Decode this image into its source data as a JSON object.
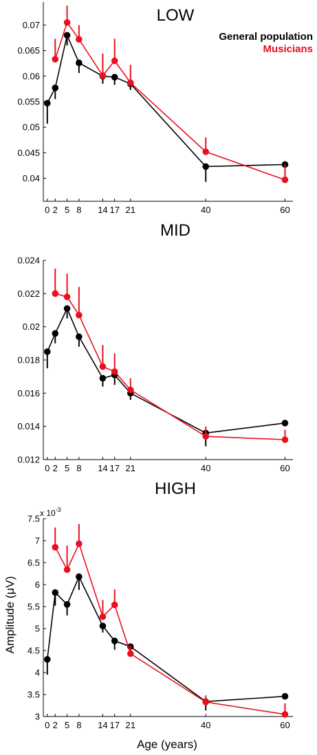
{
  "legend": {
    "general_label": "General population",
    "musicians_label": "Musicians",
    "general_color": "#000000",
    "musicians_color": "#e8101e"
  },
  "ylabel": "Amplitude (μV)",
  "xlabel": "Age (years)",
  "x_tick_labels": [
    "0",
    "2",
    "5",
    "8",
    "14",
    "17",
    "21",
    "40",
    "60"
  ],
  "chart_data": [
    {
      "type": "line",
      "title": "LOW",
      "x": [
        0,
        2,
        5,
        8,
        14,
        17,
        21,
        40,
        60
      ],
      "xlim": [
        -1,
        62
      ],
      "ylim": [
        0.0355,
        0.0745
      ],
      "yticks": [
        0.04,
        0.045,
        0.05,
        0.055,
        0.06,
        0.065,
        0.07
      ],
      "ytick_labels": [
        "0.04",
        "0.045",
        "0.05",
        "0.055",
        "0.06",
        "0.065",
        "0.07"
      ],
      "series": [
        {
          "name": "General population",
          "color": "#000000",
          "values": [
            0.0547,
            0.0577,
            0.068,
            0.0626,
            0.06,
            0.0598,
            0.0585,
            0.0423,
            0.0427
          ],
          "err_lower": [
            0.004,
            0.0022,
            0.002,
            0.002,
            0.0015,
            0.0015,
            0.0012,
            0.003,
            0.0
          ],
          "err_upper": [
            0.0,
            0.0,
            0.0,
            0.0,
            0.0,
            0.0,
            0.0,
            0.0,
            0.0
          ]
        },
        {
          "name": "Musicians",
          "color": "#e8101e",
          "values": [
            null,
            0.0633,
            0.0705,
            0.0672,
            0.0601,
            0.063,
            0.0587,
            0.0452,
            0.0397
          ],
          "err_lower": [
            0,
            0,
            0,
            0,
            0,
            0,
            0,
            0,
            0
          ],
          "err_upper": [
            0,
            0.004,
            0.0033,
            0.0028,
            0.0043,
            0.0043,
            0.0035,
            0.0028,
            0.003
          ]
        }
      ]
    },
    {
      "type": "line",
      "title": "MID",
      "x": [
        0,
        2,
        5,
        8,
        14,
        17,
        21,
        40,
        60
      ],
      "xlim": [
        -1,
        62
      ],
      "ylim": [
        0.012,
        0.024
      ],
      "yticks": [
        0.012,
        0.014,
        0.016,
        0.018,
        0.02,
        0.022,
        0.024
      ],
      "ytick_labels": [
        "0.012",
        "0.014",
        "0.016",
        "0.018",
        "0.02",
        "0.022",
        "0.024"
      ],
      "series": [
        {
          "name": "General population",
          "color": "#000000",
          "values": [
            0.0185,
            0.0196,
            0.0211,
            0.0194,
            0.0169,
            0.0171,
            0.016,
            0.0136,
            0.0142
          ],
          "err_lower": [
            0.001,
            0.0006,
            0.0006,
            0.0006,
            0.0005,
            0.0006,
            0.0004,
            0.0008,
            0.0
          ],
          "err_upper": [
            0,
            0,
            0,
            0,
            0,
            0,
            0,
            0,
            0
          ]
        },
        {
          "name": "Musicians",
          "color": "#e8101e",
          "values": [
            null,
            0.022,
            0.0218,
            0.0207,
            0.0176,
            0.0173,
            0.0162,
            0.0134,
            0.0132
          ],
          "err_lower": [
            0,
            0,
            0,
            0,
            0,
            0,
            0,
            0,
            0
          ],
          "err_upper": [
            0,
            0.0015,
            0.0014,
            0.0017,
            0.0013,
            0.0011,
            0.0007,
            0.0006,
            0.0006
          ]
        }
      ]
    },
    {
      "type": "line",
      "title": "HIGH",
      "multiplier": "x 10",
      "multiplier_exp": "-3",
      "x": [
        0,
        2,
        5,
        8,
        14,
        17,
        21,
        40,
        60
      ],
      "xlim": [
        -1,
        62
      ],
      "ylim": [
        3.0,
        7.5
      ],
      "yticks": [
        3,
        3.5,
        4,
        4.5,
        5,
        5.5,
        6,
        6.5,
        7,
        7.5
      ],
      "ytick_labels": [
        "3",
        "3.5",
        "4",
        "4.5",
        "5",
        "5.5",
        "6",
        "6.5",
        "7",
        "7.5"
      ],
      "series": [
        {
          "name": "General population",
          "color": "#000000",
          "values": [
            4.3,
            5.82,
            5.55,
            6.18,
            5.06,
            4.72,
            4.59,
            3.34,
            3.46
          ],
          "err_lower": [
            0.35,
            0.3,
            0.25,
            0.3,
            0.15,
            0.2,
            0.15,
            0.2,
            0.0
          ],
          "err_upper": [
            0,
            0,
            0,
            0,
            0,
            0,
            0,
            0,
            0
          ]
        },
        {
          "name": "Musicians",
          "color": "#e8101e",
          "values": [
            null,
            6.85,
            6.34,
            6.93,
            5.27,
            5.54,
            4.43,
            3.33,
            3.05
          ],
          "err_lower": [
            0,
            0,
            0,
            0,
            0,
            0,
            0,
            0,
            0
          ],
          "err_upper": [
            0,
            0.45,
            0.55,
            0.45,
            0.38,
            0.35,
            0.2,
            0.15,
            0.25
          ]
        }
      ]
    }
  ]
}
